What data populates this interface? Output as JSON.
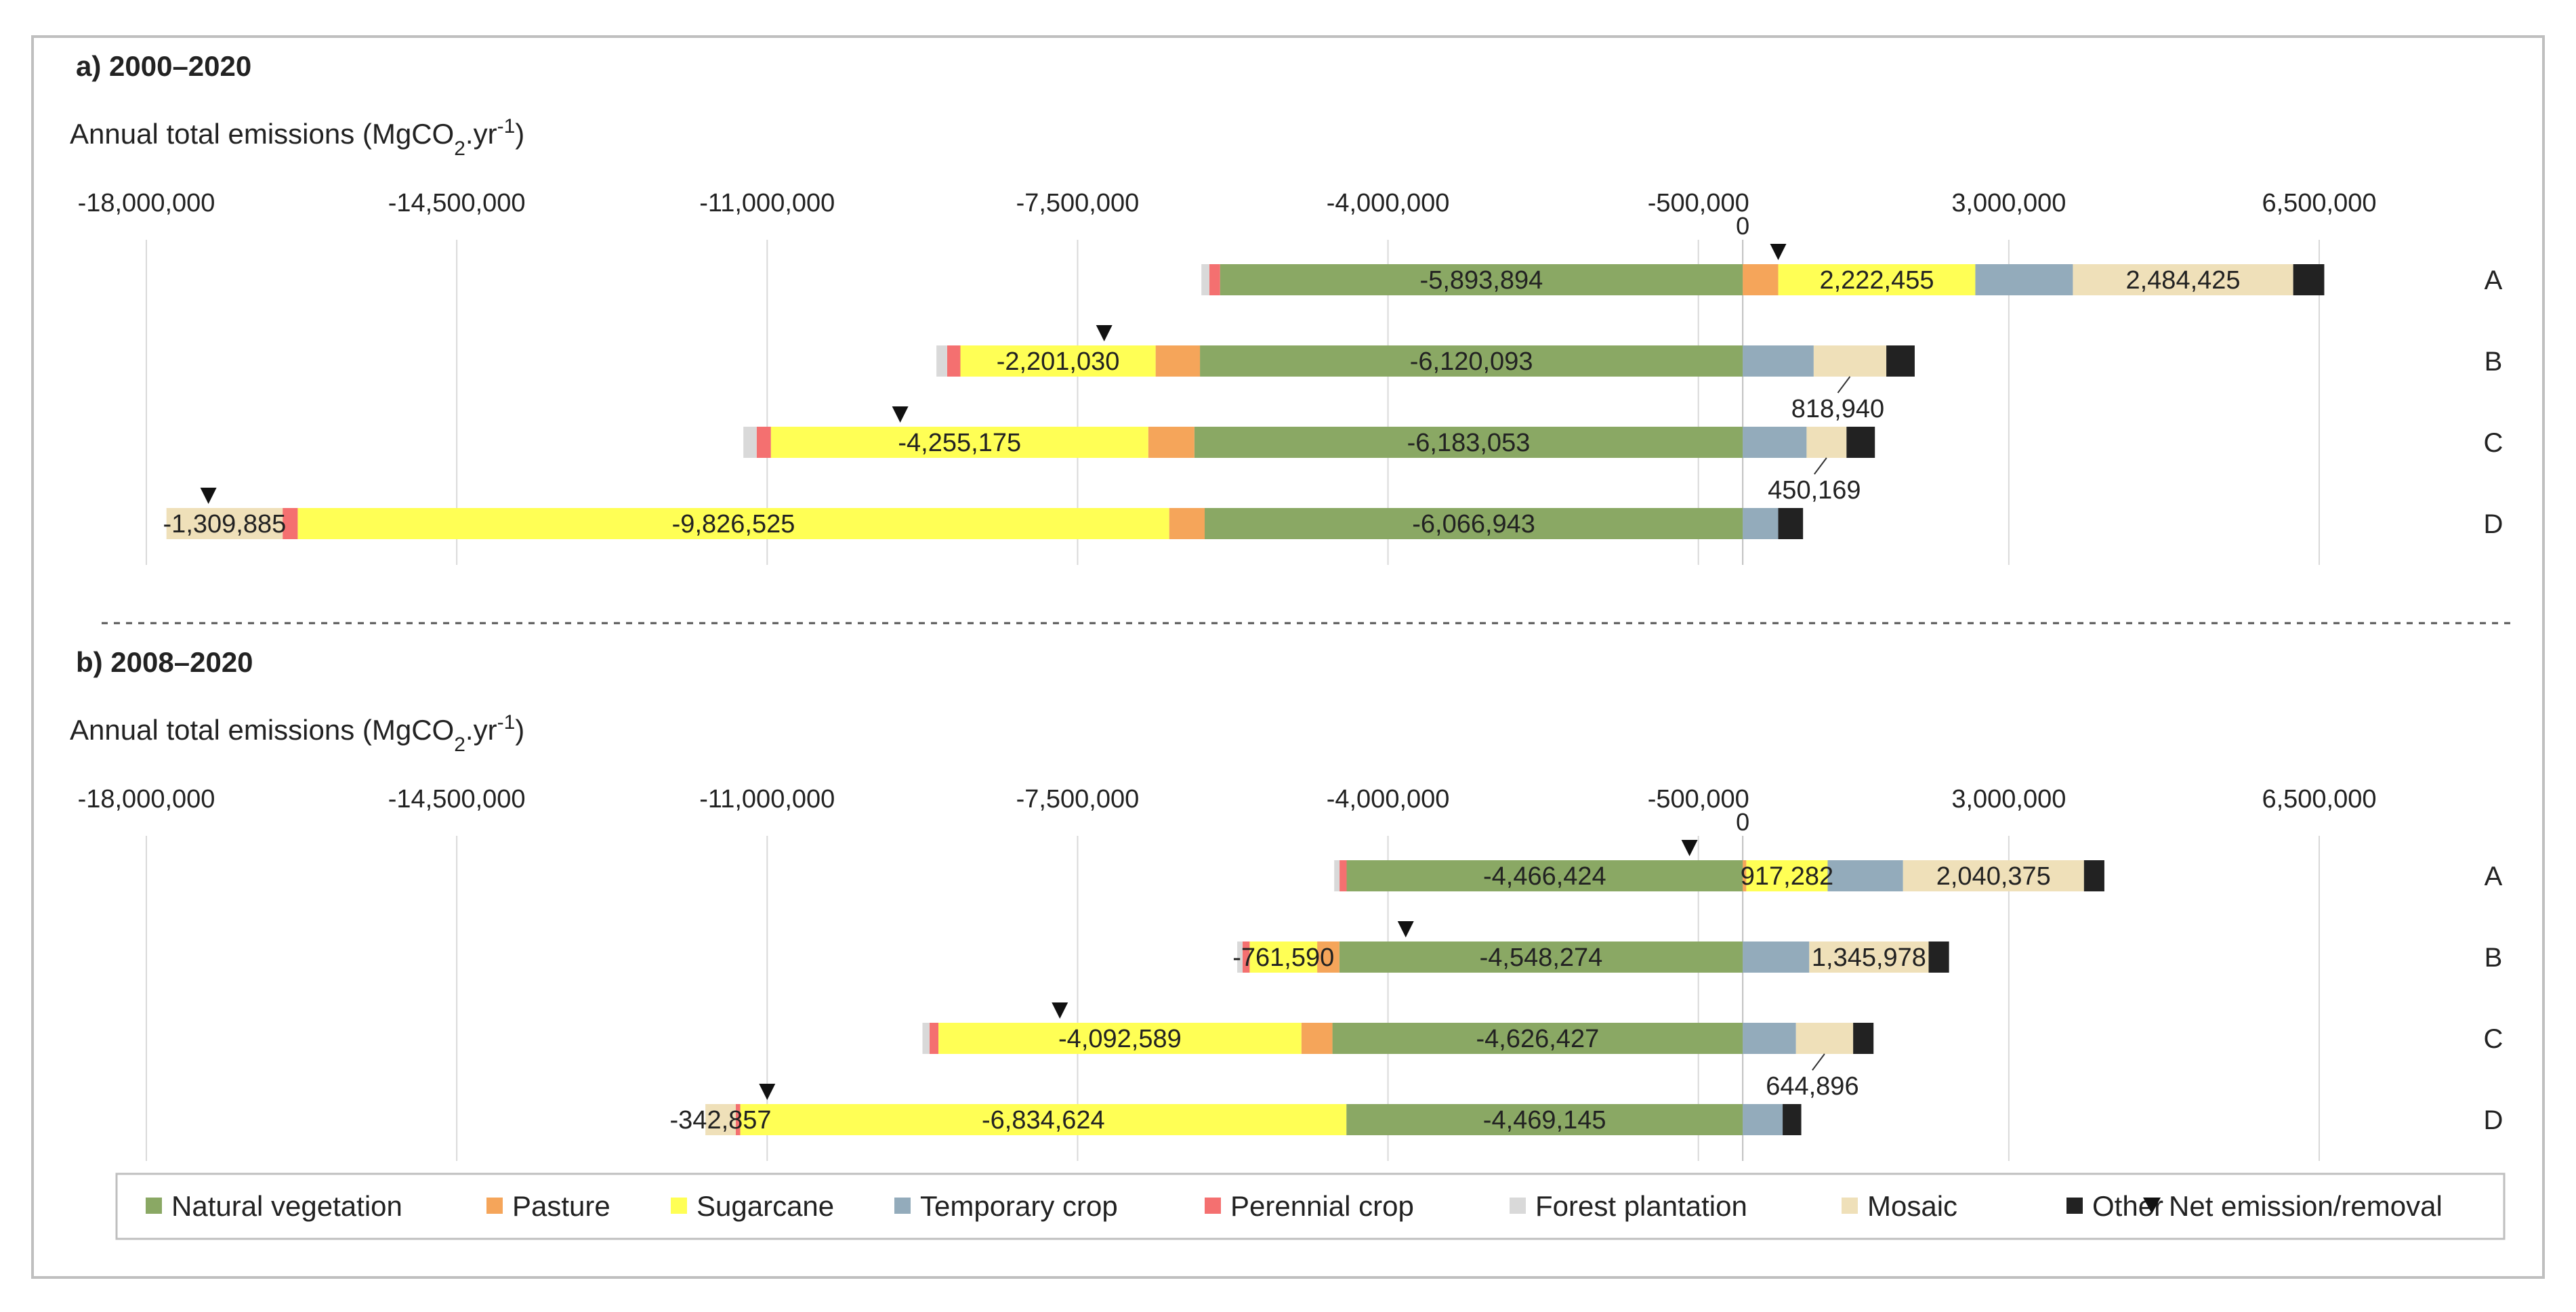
{
  "chart_data": {
    "type": "bar",
    "orientation": "horizontal",
    "stacked": true,
    "categories": [
      "A",
      "B",
      "C",
      "D"
    ],
    "xlim": [
      -18000000,
      6500000
    ],
    "ticks": [
      "-18,000,000",
      "-14,500,000",
      "-11,000,000",
      "-7,500,000",
      "-4,000,000",
      "-500,000",
      "3,000,000",
      "6,500,000"
    ],
    "tick_values": [
      -18000000,
      -14500000,
      -11000000,
      -7500000,
      -4000000,
      -500000,
      3000000,
      6500000
    ],
    "zero_label": "0",
    "ylabel_main": "Annual total emissions (MgCO",
    "ylabel_sub": "2",
    "ylabel_mid": ".yr",
    "ylabel_sup": "-1",
    "ylabel_end": ")",
    "colors": {
      "Natural vegetation": "#8aa864",
      "Pasture": "#f5a55a",
      "Sugarcane": "#ffff55",
      "Temporary crop": "#93abbb",
      "Perennial crop": "#f47070",
      "Forest plantation": "#d9d9d9",
      "Mosaic": "#efe0b9",
      "Other": "#222222"
    },
    "legend": [
      {
        "label": "Natural vegetation",
        "kind": "box",
        "color": "#8aa864"
      },
      {
        "label": "Pasture",
        "kind": "box",
        "color": "#f5a55a"
      },
      {
        "label": "Sugarcane",
        "kind": "box",
        "color": "#ffff55"
      },
      {
        "label": "Temporary crop",
        "kind": "box",
        "color": "#93abbb"
      },
      {
        "label": "Perennial crop",
        "kind": "box",
        "color": "#f47070"
      },
      {
        "label": "Forest plantation",
        "kind": "box",
        "color": "#d9d9d9"
      },
      {
        "label": "Mosaic",
        "kind": "box",
        "color": "#efe0b9"
      },
      {
        "label": "Other",
        "kind": "box",
        "color": "#222222"
      },
      {
        "label": "Net emission/removal",
        "kind": "triangle",
        "color": "#111111"
      }
    ],
    "panels": [
      {
        "title": "a) 2000–2020",
        "rows": [
          {
            "category": "A",
            "net": 400000,
            "negative": [
              {
                "type": "Natural vegetation",
                "value": -5893894,
                "label": "-5,893,894"
              },
              {
                "type": "Perennial crop",
                "value": -120000
              },
              {
                "type": "Forest plantation",
                "value": -90000
              }
            ],
            "positive": [
              {
                "type": "Pasture",
                "value": 400000
              },
              {
                "type": "Sugarcane",
                "value": 2222455,
                "label": "2,222,455"
              },
              {
                "type": "Temporary crop",
                "value": 1100000
              },
              {
                "type": "Mosaic",
                "value": 2484425,
                "label": "2,484,425"
              },
              {
                "type": "Other",
                "value": 350000
              }
            ]
          },
          {
            "category": "B",
            "net": -7200000,
            "negative": [
              {
                "type": "Natural vegetation",
                "value": -6120093,
                "label": "-6,120,093"
              },
              {
                "type": "Pasture",
                "value": -500000
              },
              {
                "type": "Sugarcane",
                "value": -2201030,
                "label": "-2,201,030"
              },
              {
                "type": "Perennial crop",
                "value": -150000
              },
              {
                "type": "Forest plantation",
                "value": -120000
              }
            ],
            "positive": [
              {
                "type": "Temporary crop",
                "value": 800000
              },
              {
                "type": "Mosaic",
                "value": 818940,
                "label": "818,940",
                "callout": true
              },
              {
                "type": "Other",
                "value": 320000
              }
            ]
          },
          {
            "category": "C",
            "net": -9500000,
            "negative": [
              {
                "type": "Natural vegetation",
                "value": -6183053,
                "label": "-6,183,053"
              },
              {
                "type": "Pasture",
                "value": -520000
              },
              {
                "type": "Sugarcane",
                "value": -4255175,
                "label": "-4,255,175"
              },
              {
                "type": "Perennial crop",
                "value": -160000
              },
              {
                "type": "Forest plantation",
                "value": -150000
              }
            ],
            "positive": [
              {
                "type": "Temporary crop",
                "value": 720000
              },
              {
                "type": "Mosaic",
                "value": 450169,
                "label": "450,169",
                "callout": true
              },
              {
                "type": "Other",
                "value": 320000
              }
            ]
          },
          {
            "category": "D",
            "net": -17300000,
            "negative": [
              {
                "type": "Natural vegetation",
                "value": -6066943,
                "label": "-6,066,943"
              },
              {
                "type": "Pasture",
                "value": -400000
              },
              {
                "type": "Sugarcane",
                "value": -9826525,
                "label": "-9,826,525"
              },
              {
                "type": "Perennial crop",
                "value": -170000
              },
              {
                "type": "Mosaic",
                "value": -1309885,
                "label": "-1,309,885"
              }
            ],
            "positive": [
              {
                "type": "Temporary crop",
                "value": 400000
              },
              {
                "type": "Other",
                "value": 280000
              }
            ]
          }
        ]
      },
      {
        "title": "b) 2008–2020",
        "rows": [
          {
            "category": "A",
            "net": -600000,
            "negative": [
              {
                "type": "Natural vegetation",
                "value": -4466424,
                "label": "-4,466,424"
              },
              {
                "type": "Perennial crop",
                "value": -80000
              },
              {
                "type": "Forest plantation",
                "value": -60000
              }
            ],
            "positive": [
              {
                "type": "Pasture",
                "value": 40000
              },
              {
                "type": "Sugarcane",
                "value": 917282,
                "label": "917,282"
              },
              {
                "type": "Temporary crop",
                "value": 850000
              },
              {
                "type": "Mosaic",
                "value": 2040375,
                "label": "2,040,375"
              },
              {
                "type": "Other",
                "value": 230000
              }
            ]
          },
          {
            "category": "B",
            "net": -3800000,
            "negative": [
              {
                "type": "Natural vegetation",
                "value": -4548274,
                "label": "-4,548,274"
              },
              {
                "type": "Pasture",
                "value": -250000
              },
              {
                "type": "Sugarcane",
                "value": -761590,
                "label": "-761,590"
              },
              {
                "type": "Perennial crop",
                "value": -80000
              },
              {
                "type": "Forest plantation",
                "value": -60000
              }
            ],
            "positive": [
              {
                "type": "Temporary crop",
                "value": 750000
              },
              {
                "type": "Mosaic",
                "value": 1345978,
                "label": "1,345,978"
              },
              {
                "type": "Other",
                "value": 230000
              }
            ]
          },
          {
            "category": "C",
            "net": -7700000,
            "negative": [
              {
                "type": "Natural vegetation",
                "value": -4626427,
                "label": "-4,626,427"
              },
              {
                "type": "Pasture",
                "value": -350000
              },
              {
                "type": "Sugarcane",
                "value": -4092589,
                "label": "-4,092,589"
              },
              {
                "type": "Perennial crop",
                "value": -100000
              },
              {
                "type": "Forest plantation",
                "value": -80000
              }
            ],
            "positive": [
              {
                "type": "Temporary crop",
                "value": 600000
              },
              {
                "type": "Mosaic",
                "value": 644896,
                "label": "644,896",
                "callout": true
              },
              {
                "type": "Other",
                "value": 230000
              }
            ]
          },
          {
            "category": "D",
            "net": -11000000,
            "negative": [
              {
                "type": "Natural vegetation",
                "value": -4469145,
                "label": "-4,469,145"
              },
              {
                "type": "Sugarcane",
                "value": -6834624,
                "label": "-6,834,624"
              },
              {
                "type": "Perennial crop",
                "value": -50000
              },
              {
                "type": "Mosaic",
                "value": -342857,
                "label": "-342,857"
              }
            ],
            "positive": [
              {
                "type": "Temporary crop",
                "value": 450000
              },
              {
                "type": "Other",
                "value": 210000
              }
            ]
          }
        ]
      }
    ]
  }
}
